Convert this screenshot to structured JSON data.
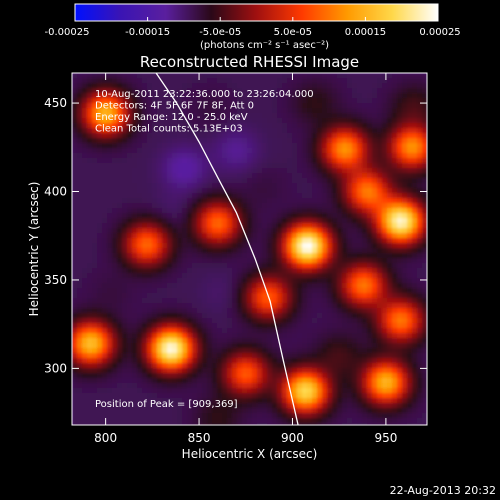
{
  "chart_data": {
    "type": "heatmap",
    "title": "Reconstructed RHESSI Image",
    "xlabel": "Heliocentric X (arcsec)",
    "ylabel": "Heliocentric Y (arcsec)",
    "xlim": [
      782,
      972
    ],
    "ylim": [
      268,
      467
    ],
    "x_ticks": [
      800,
      850,
      900,
      950
    ],
    "y_ticks": [
      300,
      350,
      400,
      450
    ],
    "colorbar": {
      "range": [
        -0.00025,
        0.00025
      ],
      "tick_values": [
        -0.00025,
        -0.00015,
        -5e-05,
        5e-05,
        0.00015,
        0.00025
      ],
      "tick_labels": [
        "-0.00025",
        "-0.00015",
        "-5.0e-05",
        "5.0e-05",
        "0.00015",
        "0.00025"
      ],
      "unit_label": "(photons cm⁻² s⁻¹ asec⁻²)",
      "colors": [
        "#0010ff",
        "#3a14b4",
        "#5a1f9e",
        "#2a0818",
        "#a01010",
        "#ff3a00",
        "#ff9a00",
        "#ffd84a",
        "#ffffff"
      ]
    },
    "annotations": [
      "10-Aug-2011 23:22:36.000 to 23:26:04.000",
      "Detectors: 4F 5F 6F 7F 8F, Att 0",
      "Energy Range: 12.0 - 25.0 keV",
      "Clean    Total counts: 5.13E+03"
    ],
    "peak_label": "Position of Peak = [909,369]",
    "peak_position": [
      909,
      369
    ],
    "limb_curve": [
      [
        827,
        467
      ],
      [
        838,
        450
      ],
      [
        850,
        428
      ],
      [
        860,
        408
      ],
      [
        870,
        388
      ],
      [
        880,
        362
      ],
      [
        888,
        338
      ],
      [
        895,
        305
      ],
      [
        903,
        268
      ]
    ],
    "sources": [
      {
        "x": 908,
        "y": 369,
        "level": 0.00025
      },
      {
        "x": 958,
        "y": 383,
        "level": 0.00023
      },
      {
        "x": 835,
        "y": 311,
        "level": 0.00024
      },
      {
        "x": 907,
        "y": 287,
        "level": 0.00019
      },
      {
        "x": 792,
        "y": 314,
        "level": 0.00016
      },
      {
        "x": 800,
        "y": 444,
        "level": 0.00015
      },
      {
        "x": 950,
        "y": 292,
        "level": 0.00015
      },
      {
        "x": 964,
        "y": 425,
        "level": 0.00012
      },
      {
        "x": 928,
        "y": 424,
        "level": 0.00012
      },
      {
        "x": 938,
        "y": 347,
        "level": 0.0001
      },
      {
        "x": 860,
        "y": 382,
        "level": 9e-05
      },
      {
        "x": 958,
        "y": 327,
        "level": 0.0001
      },
      {
        "x": 822,
        "y": 370,
        "level": 9e-05
      },
      {
        "x": 875,
        "y": 297,
        "level": 8e-05
      },
      {
        "x": 887,
        "y": 340,
        "level": 8e-05
      },
      {
        "x": 940,
        "y": 400,
        "level": 0.0001
      },
      {
        "x": 870,
        "y": 423,
        "level": -0.00012
      },
      {
        "x": 842,
        "y": 413,
        "level": -0.00013
      },
      {
        "x": 818,
        "y": 408,
        "level": -9e-05
      },
      {
        "x": 862,
        "y": 343,
        "level": -0.0001
      },
      {
        "x": 803,
        "y": 343,
        "level": -8e-05
      },
      {
        "x": 836,
        "y": 389,
        "level": -0.0001
      },
      {
        "x": 885,
        "y": 402,
        "level": -8e-05
      },
      {
        "x": 856,
        "y": 447,
        "level": -8e-05
      },
      {
        "x": 912,
        "y": 450,
        "level": -6e-05
      },
      {
        "x": 965,
        "y": 448,
        "level": -5e-05
      },
      {
        "x": 925,
        "y": 307,
        "level": -5e-05
      },
      {
        "x": 860,
        "y": 272,
        "level": -6e-05
      }
    ]
  },
  "footer": {
    "timestamp": "22-Aug-2013 20:32"
  }
}
